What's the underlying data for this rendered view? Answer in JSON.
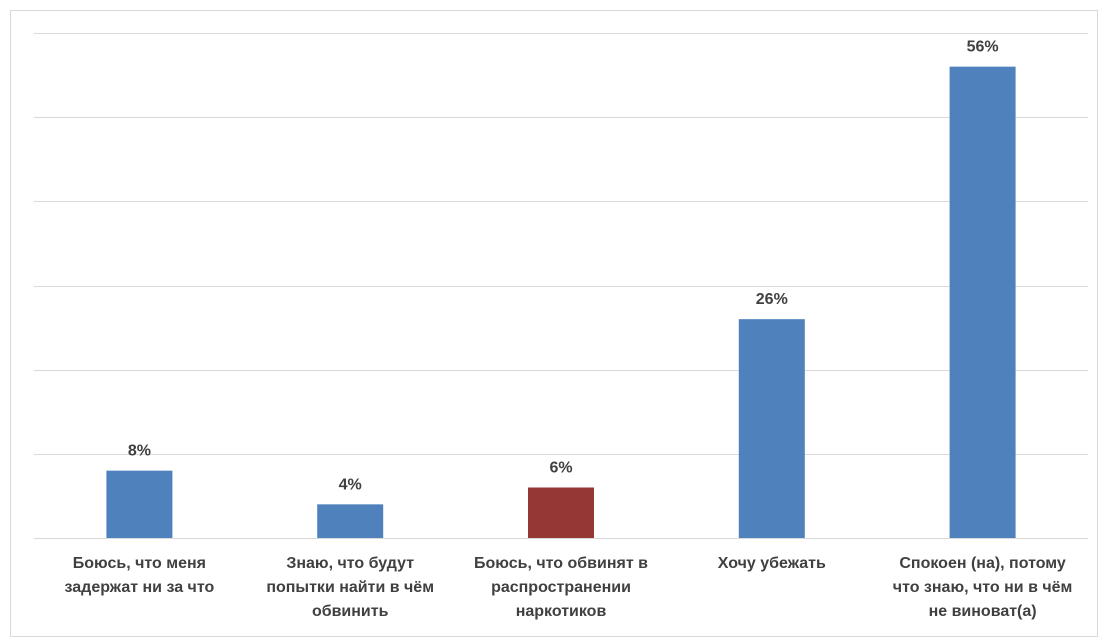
{
  "chart_data": {
    "type": "bar",
    "title": "",
    "xlabel": "",
    "ylabel": "",
    "categories": [
      "Боюсь, что меня\nзадержат ни за что",
      "Знаю, что будут\nпопытки найти в чём\nобвинить",
      "Боюсь, что обвинят в\nраспространении\nнаркотиков",
      "Хочу убежать",
      "Спокоен (на), потому\nчто знаю, что ни в чём\nне виноват(а)"
    ],
    "values": [
      8,
      4,
      6,
      26,
      56
    ],
    "value_labels": [
      "8%",
      "4%",
      "6%",
      "26%",
      "56%"
    ],
    "ylim": [
      0,
      60
    ],
    "y_grid_step": 10,
    "grid": true,
    "legend": "none",
    "colors": {
      "default": "#4f81bd",
      "highlight": "#953735",
      "grid": "#d9d9d9",
      "text": "#404040"
    },
    "highlight_index": 2
  }
}
